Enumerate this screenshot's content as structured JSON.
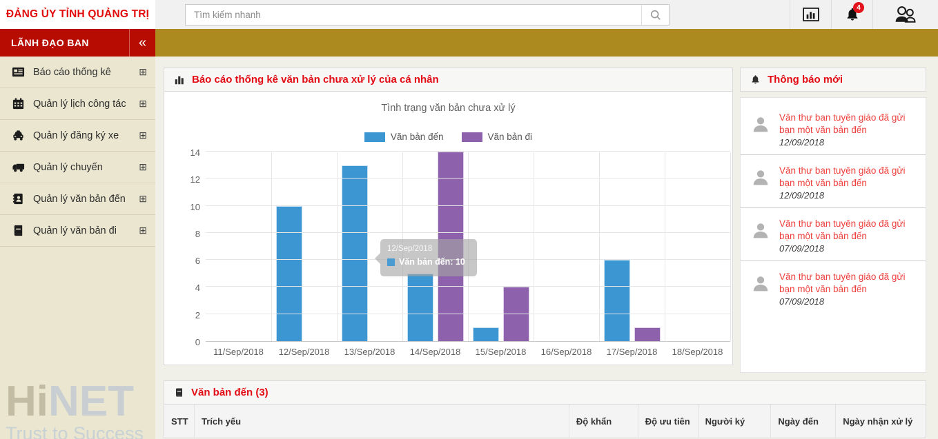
{
  "header": {
    "org_name": "ĐẢNG ỦY TỈNH QUẢNG TRỊ",
    "search_placeholder": "Tìm kiếm nhanh",
    "notification_count": "4"
  },
  "sidebar": {
    "title": "LÃNH ĐẠO BAN",
    "collapse_glyph": "«",
    "expand_glyph": "⊞",
    "items": [
      {
        "label": "Báo cáo thống kê",
        "icon": "report-icon"
      },
      {
        "label": "Quản lý lịch công tác",
        "icon": "calendar-icon"
      },
      {
        "label": "Quản lý đăng ký xe",
        "icon": "car-icon"
      },
      {
        "label": "Quản lý chuyến",
        "icon": "truck-icon"
      },
      {
        "label": "Quản lý văn bản đến",
        "icon": "address-book-icon"
      },
      {
        "label": "Quản lý văn bản đi",
        "icon": "book-icon"
      }
    ],
    "watermark": {
      "part1": "Hi",
      "part2": "NET",
      "tagline": "Trust to Success"
    }
  },
  "chart_panel": {
    "title": "Báo cáo thống kê văn bản chưa xử lý của cá nhân"
  },
  "chart_data": {
    "type": "bar",
    "title": "Tình trạng văn bản chưa xử lý",
    "categories": [
      "11/Sep/2018",
      "12/Sep/2018",
      "13/Sep/2018",
      "14/Sep/2018",
      "15/Sep/2018",
      "16/Sep/2018",
      "17/Sep/2018",
      "18/Sep/2018"
    ],
    "series": [
      {
        "name": "Văn bản đến",
        "color": "#3b96d2",
        "values": [
          0,
          10,
          13,
          5,
          1,
          0,
          6,
          0
        ]
      },
      {
        "name": "Văn bản đi",
        "color": "#8d61ac",
        "values": [
          0,
          0,
          0,
          14,
          4,
          0,
          1,
          0
        ]
      }
    ],
    "ylim": [
      0,
      14
    ],
    "yticks": [
      0,
      2,
      4,
      6,
      8,
      10,
      12,
      14
    ],
    "legend_position": "top",
    "grid": true,
    "tooltip": {
      "header": "12/Sep/2018",
      "series": "Văn bản đến",
      "value": "10"
    }
  },
  "notifications": {
    "title": "Thông báo mới",
    "items": [
      {
        "text": "Văn thư ban tuyên giáo đã gửi bạn một văn bản đến",
        "date": "12/09/2018"
      },
      {
        "text": "Văn thư ban tuyên giáo đã gửi bạn một văn bản đến",
        "date": "12/09/2018"
      },
      {
        "text": "Văn thư ban tuyên giáo đã gửi bạn một văn bản đến",
        "date": "07/09/2018"
      },
      {
        "text": "Văn thư ban tuyên giáo đã gửi bạn một văn bản đến",
        "date": "07/09/2018"
      }
    ]
  },
  "table": {
    "title": "Văn bản đến (3)",
    "columns": [
      "STT",
      "Trích yếu",
      "Độ khẩn",
      "Độ ưu tiên",
      "Người ký",
      "Ngày đến",
      "Ngày nhận xử lý"
    ]
  }
}
